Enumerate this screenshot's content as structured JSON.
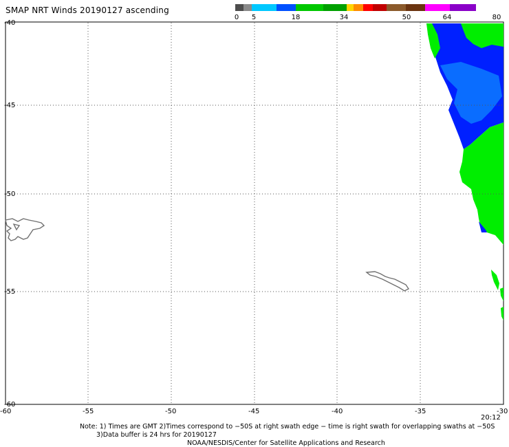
{
  "header": {
    "title": "SMAP NRT Winds 20190127 ascending"
  },
  "scale": {
    "labels": [
      "0",
      "5",
      "18",
      "34",
      "50",
      "64",
      "80"
    ],
    "colors": [
      "#4d4d4d",
      "#8a8a8a",
      "#00c8ff",
      "#0050ff",
      "#00c800",
      "#00a000",
      "#ffd400",
      "#ff8c00",
      "#ff0000",
      "#c00000",
      "#8b5a2b",
      "#6b3410",
      "#ff00ff",
      "#8a00c8"
    ]
  },
  "map": {
    "lat_labels": [
      "-40",
      "-45",
      "-50",
      "-55",
      "-60"
    ],
    "lon_labels": [
      "-60",
      "-55",
      "-50",
      "-45",
      "-40",
      "-35",
      "-30"
    ],
    "time_label": "20:12",
    "colors": {
      "wind_blue": "#0020ff",
      "wind_lightblue": "#0a6dff",
      "wind_green": "#00ee00",
      "land": "#707070",
      "grid": "#555555"
    }
  },
  "notes": {
    "line1": "Note: 1) Times are GMT 2)Times correspond to −50S at right swath edge − time is right swath for overlapping swaths at −50S",
    "line2": "3)Data buffer is 24 hrs for 20190127",
    "line3": "NOAA/NESDIS/Center for Satellite Applications and Research"
  }
}
